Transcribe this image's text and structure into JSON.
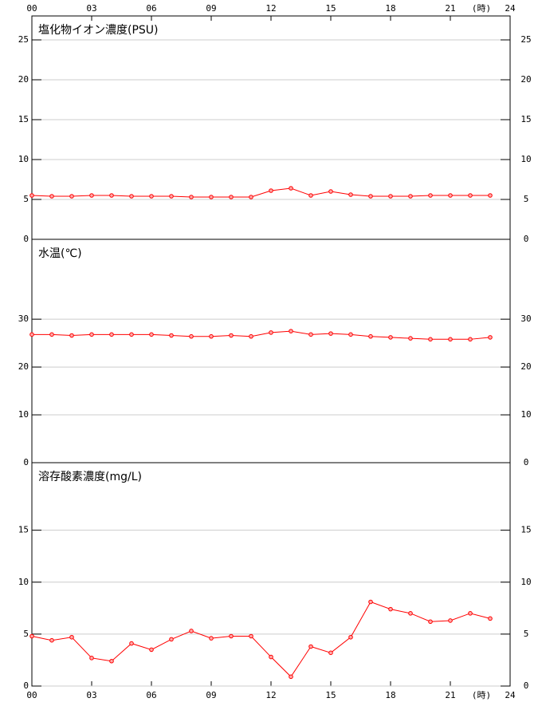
{
  "x_axis": {
    "xlim": [
      0,
      24
    ],
    "xlabel": "(時)",
    "xticks": [
      {
        "value": 0,
        "label": "00"
      },
      {
        "value": 3,
        "label": "03"
      },
      {
        "value": 6,
        "label": "06"
      },
      {
        "value": 9,
        "label": "09"
      },
      12,
      15,
      18,
      21,
      24
    ]
  },
  "chart_data": [
    {
      "type": "line",
      "title": "塩化物イオン濃度(PSU)",
      "color": "#ff0000",
      "x": [
        0,
        1,
        2,
        3,
        4,
        5,
        6,
        7,
        8,
        9,
        10,
        11,
        12,
        13,
        14,
        15,
        16,
        17,
        18,
        19,
        20,
        21,
        22,
        23
      ],
      "values": [
        5.5,
        5.4,
        5.4,
        5.5,
        5.5,
        5.4,
        5.4,
        5.4,
        5.3,
        5.3,
        5.3,
        5.3,
        6.1,
        6.4,
        5.5,
        6.0,
        5.6,
        5.4,
        5.4,
        5.4,
        5.5,
        5.5,
        5.5,
        5.5
      ],
      "ylim": [
        0,
        28
      ],
      "yticks": [
        0,
        5,
        10,
        15,
        20,
        25
      ],
      "grid": true
    },
    {
      "type": "line",
      "title": "水温(℃)",
      "color": "#ff0000",
      "x": [
        0,
        1,
        2,
        3,
        4,
        5,
        6,
        7,
        8,
        9,
        10,
        11,
        12,
        13,
        14,
        15,
        16,
        17,
        18,
        19,
        20,
        21,
        22,
        23
      ],
      "values": [
        26.8,
        26.8,
        26.6,
        26.8,
        26.8,
        26.8,
        26.8,
        26.6,
        26.4,
        26.4,
        26.6,
        26.4,
        27.2,
        27.5,
        26.8,
        27.0,
        26.8,
        26.4,
        26.2,
        26.0,
        25.8,
        25.8,
        25.8,
        26.2
      ],
      "ylim": [
        0,
        46.7
      ],
      "yticks": [
        0,
        10,
        20,
        30
      ],
      "grid": true
    },
    {
      "type": "line",
      "title": "溶存酸素濃度(mg/L)",
      "color": "#ff0000",
      "x": [
        0,
        1,
        2,
        3,
        4,
        5,
        6,
        7,
        8,
        9,
        10,
        11,
        12,
        13,
        14,
        15,
        16,
        17,
        18,
        19,
        20,
        21,
        22,
        23
      ],
      "values": [
        4.8,
        4.4,
        4.7,
        2.7,
        2.4,
        4.1,
        3.5,
        4.5,
        5.3,
        4.6,
        4.8,
        4.8,
        2.8,
        0.9,
        3.8,
        3.2,
        4.7,
        8.1,
        7.4,
        7.0,
        6.2,
        6.3,
        7.0,
        6.5
      ],
      "ylim": [
        0,
        21.5
      ],
      "yticks": [
        0,
        5,
        10,
        15
      ],
      "grid": true
    }
  ]
}
